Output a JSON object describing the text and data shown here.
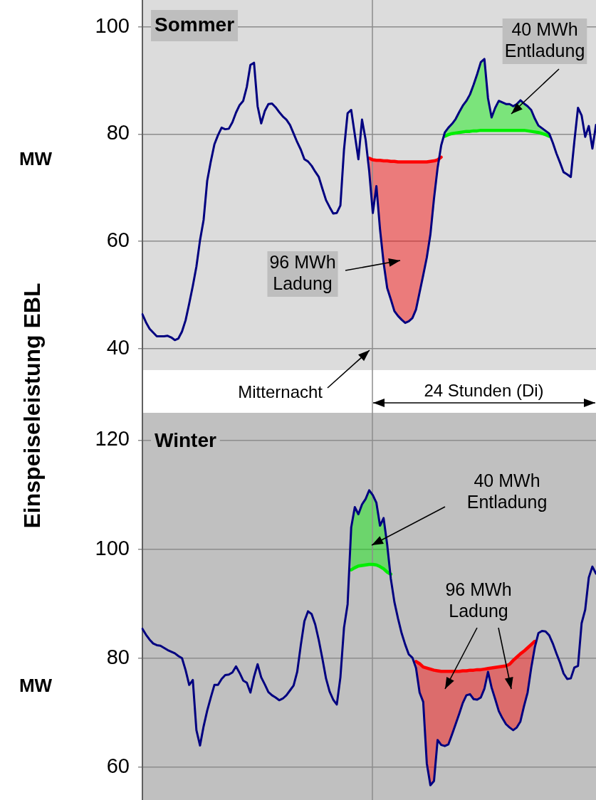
{
  "chart_data": [
    {
      "type": "line",
      "title": "Sommer",
      "ylabel": "MW",
      "ylim": [
        36,
        105
      ],
      "yticks": [
        40,
        60,
        80,
        100
      ],
      "grid": "y",
      "legend": false,
      "marker": "none",
      "tick_labels": "y",
      "categories": [
        null,
        null,
        null,
        null,
        null,
        null,
        null,
        null,
        null,
        null,
        null,
        null,
        null,
        null,
        null,
        null,
        null,
        null,
        null,
        null,
        null,
        null,
        null,
        null,
        null,
        null,
        null,
        null,
        null,
        null,
        null,
        null,
        null,
        null,
        null,
        null,
        null,
        null,
        null,
        null,
        null,
        null,
        null,
        null,
        null,
        null,
        null,
        null,
        null,
        null,
        null,
        null,
        null,
        null,
        null,
        null,
        null,
        null,
        null,
        null,
        null,
        null,
        null,
        null,
        null,
        null,
        null,
        null,
        null,
        null,
        null,
        null,
        null,
        null,
        null,
        null,
        null,
        null,
        null,
        null,
        null,
        null,
        null,
        null,
        null,
        null,
        null,
        null,
        null,
        null,
        null,
        null,
        null,
        null,
        null,
        null,
        null,
        null,
        null,
        null,
        null,
        null,
        null,
        null,
        null,
        null,
        null,
        null,
        null,
        null,
        null,
        null,
        null,
        null,
        null,
        null,
        null,
        null,
        null,
        null,
        null,
        null,
        null,
        null,
        null,
        null,
        null
      ],
      "series": [
        {
          "color": "#000080",
          "values": [
            46.4,
            44.9,
            43.7,
            43.0,
            42.3,
            42.3,
            42.3,
            42.4,
            42.1,
            41.6,
            41.9,
            43.2,
            45.3,
            48.4,
            51.7,
            55.3,
            60.2,
            64,
            71.3,
            74.9,
            78.1,
            79.8,
            81.2,
            80.9,
            81,
            82.2,
            84,
            85.4,
            86.2,
            88.8,
            92.9,
            93.3,
            85.2,
            82,
            84.3,
            85.6,
            85.7,
            85,
            84.1,
            83.3,
            82.7,
            81.7,
            80.1,
            78.5,
            77.1,
            75.3,
            74.9,
            74.1,
            73,
            72,
            69.8,
            67.7,
            66.4,
            65.2,
            65.3,
            66.7,
            77.1,
            83.9,
            84.5,
            79.9,
            75.3,
            82.7,
            79,
            73.1,
            65.3,
            70.3,
            62.3,
            56,
            51.3,
            49.2,
            47,
            46.1,
            45.4,
            44.8,
            45.1,
            45.7,
            47.3,
            50.5,
            53.7,
            57,
            61.3,
            68,
            73.7,
            77.9,
            80.3,
            81.2,
            81.9,
            82.8,
            84.1,
            85.3,
            86.2,
            87.4,
            89.2,
            91.2,
            93.4,
            94,
            86.7,
            83.1,
            84.9,
            86.2,
            85.9,
            85.6,
            85.6,
            85.2,
            85.6,
            86.3,
            85.7,
            85.2,
            84.5,
            82.9,
            81.6,
            81.1,
            80.6,
            80.1,
            78.4,
            76.4,
            74.7,
            72.9,
            72.5,
            72,
            78.7,
            84.9,
            83.5,
            79.5,
            81.5,
            77.3,
            81.7
          ]
        },
        {
          "color": "#ff0000",
          "values": [
            null,
            null,
            null,
            null,
            null,
            null,
            null,
            null,
            null,
            null,
            null,
            null,
            null,
            null,
            null,
            null,
            null,
            null,
            null,
            null,
            null,
            null,
            null,
            null,
            null,
            null,
            null,
            null,
            null,
            null,
            null,
            null,
            null,
            null,
            null,
            null,
            null,
            null,
            null,
            null,
            null,
            null,
            null,
            null,
            null,
            null,
            null,
            null,
            null,
            null,
            null,
            null,
            null,
            null,
            null,
            null,
            null,
            null,
            null,
            null,
            null,
            null,
            null,
            75.5,
            75.2,
            75.1,
            75.1,
            75,
            75,
            74.9,
            74.9,
            74.8,
            74.8,
            74.8,
            74.8,
            74.8,
            74.8,
            74.8,
            74.8,
            74.8,
            74.9,
            75,
            75.2,
            75.7,
            null,
            null,
            null,
            null,
            null,
            null,
            null,
            null,
            null,
            null,
            null,
            null,
            null,
            null,
            null,
            null,
            null,
            null,
            null,
            null,
            null,
            null,
            null,
            null,
            null,
            null,
            null,
            null,
            null,
            null,
            null,
            null,
            null,
            null,
            null,
            null,
            null,
            null,
            null,
            null,
            null,
            null,
            null
          ],
          "lower": [
            null,
            null,
            null,
            null,
            null,
            null,
            null,
            null,
            null,
            null,
            null,
            null,
            null,
            null,
            null,
            null,
            null,
            null,
            null,
            null,
            null,
            null,
            null,
            null,
            null,
            null,
            null,
            null,
            null,
            null,
            null,
            null,
            null,
            null,
            null,
            null,
            null,
            null,
            null,
            null,
            null,
            null,
            null,
            null,
            null,
            null,
            null,
            null,
            null,
            null,
            null,
            null,
            null,
            null,
            null,
            null,
            null,
            null,
            null,
            null,
            null,
            null,
            null,
            73.1,
            65.3,
            70.3,
            62.3,
            56,
            51.3,
            49.2,
            47,
            46.1,
            45.4,
            44.8,
            45.1,
            45.7,
            47.3,
            50.5,
            53.7,
            57,
            61.3,
            68,
            73.7,
            75.7,
            null,
            null,
            null,
            null,
            null,
            null,
            null,
            null,
            null,
            null,
            null,
            null,
            null,
            null,
            null,
            null,
            null,
            null,
            null,
            null,
            null,
            null,
            null,
            null,
            null,
            null,
            null,
            null,
            null,
            null,
            null,
            null,
            null,
            null,
            null,
            null,
            null,
            null,
            null,
            null,
            null,
            null,
            null
          ],
          "upper": [
            null,
            null,
            null,
            null,
            null,
            null,
            null,
            null,
            null,
            null,
            null,
            null,
            null,
            null,
            null,
            null,
            null,
            null,
            null,
            null,
            null,
            null,
            null,
            null,
            null,
            null,
            null,
            null,
            null,
            null,
            null,
            null,
            null,
            null,
            null,
            null,
            null,
            null,
            null,
            null,
            null,
            null,
            null,
            null,
            null,
            null,
            null,
            null,
            null,
            null,
            null,
            null,
            null,
            null,
            null,
            null,
            null,
            null,
            null,
            null,
            null,
            null,
            null,
            75.5,
            75.2,
            75.1,
            75.1,
            75,
            75,
            74.9,
            74.9,
            74.8,
            74.8,
            74.8,
            74.8,
            74.8,
            74.8,
            74.8,
            74.8,
            74.8,
            74.9,
            75,
            75.2,
            75.7,
            null,
            null,
            null,
            null,
            null,
            null,
            null,
            null,
            null,
            null,
            null,
            null,
            null,
            null,
            null,
            null,
            null,
            null,
            null,
            null,
            null,
            null,
            null,
            null,
            null,
            null,
            null,
            null,
            null,
            null,
            null,
            null,
            null,
            null,
            null,
            null,
            null,
            null,
            null,
            null,
            null,
            null,
            null
          ]
        },
        {
          "color": "#00ee00",
          "values": [
            null,
            null,
            null,
            null,
            null,
            null,
            null,
            null,
            null,
            null,
            null,
            null,
            null,
            null,
            null,
            null,
            null,
            null,
            null,
            null,
            null,
            null,
            null,
            null,
            null,
            null,
            null,
            null,
            null,
            null,
            null,
            null,
            null,
            null,
            null,
            null,
            null,
            null,
            null,
            null,
            null,
            null,
            null,
            null,
            null,
            null,
            null,
            null,
            null,
            null,
            null,
            null,
            null,
            null,
            null,
            null,
            null,
            null,
            null,
            null,
            null,
            null,
            null,
            null,
            null,
            null,
            null,
            null,
            null,
            null,
            null,
            null,
            null,
            null,
            null,
            null,
            null,
            null,
            null,
            null,
            null,
            null,
            null,
            null,
            79.6,
            79.9,
            80.1,
            80.2,
            80.3,
            80.4,
            80.5,
            80.5,
            80.6,
            80.6,
            80.7,
            80.7,
            80.7,
            80.7,
            80.7,
            80.7,
            80.7,
            80.7,
            80.7,
            80.7,
            80.7,
            80.7,
            80.7,
            80.6,
            80.5,
            80.4,
            80.3,
            80.1,
            79.9,
            79.6,
            null,
            null,
            null,
            null,
            null,
            null,
            null,
            null,
            null,
            null,
            null,
            null,
            null
          ],
          "lower": [
            null,
            null,
            null,
            null,
            null,
            null,
            null,
            null,
            null,
            null,
            null,
            null,
            null,
            null,
            null,
            null,
            null,
            null,
            null,
            null,
            null,
            null,
            null,
            null,
            null,
            null,
            null,
            null,
            null,
            null,
            null,
            null,
            null,
            null,
            null,
            null,
            null,
            null,
            null,
            null,
            null,
            null,
            null,
            null,
            null,
            null,
            null,
            null,
            null,
            null,
            null,
            null,
            null,
            null,
            null,
            null,
            null,
            null,
            null,
            null,
            null,
            null,
            null,
            null,
            null,
            null,
            null,
            null,
            null,
            null,
            null,
            null,
            null,
            null,
            null,
            null,
            null,
            null,
            null,
            null,
            null,
            null,
            null,
            null,
            79.6,
            79.9,
            80.1,
            80.2,
            80.3,
            80.4,
            80.5,
            80.5,
            80.6,
            80.6,
            80.7,
            80.7,
            80.7,
            80.7,
            80.7,
            80.7,
            80.7,
            80.7,
            80.7,
            80.7,
            80.7,
            80.7,
            80.7,
            80.6,
            80.5,
            80.4,
            80.3,
            80.1,
            79.9,
            79.6,
            null,
            null,
            null,
            null,
            null,
            null,
            null,
            null,
            null,
            null,
            null,
            null,
            null
          ],
          "upper": [
            null,
            null,
            null,
            null,
            null,
            null,
            null,
            null,
            null,
            null,
            null,
            null,
            null,
            null,
            null,
            null,
            null,
            null,
            null,
            null,
            null,
            null,
            null,
            null,
            null,
            null,
            null,
            null,
            null,
            null,
            null,
            null,
            null,
            null,
            null,
            null,
            null,
            null,
            null,
            null,
            null,
            null,
            null,
            null,
            null,
            null,
            null,
            null,
            null,
            null,
            null,
            null,
            null,
            null,
            null,
            null,
            null,
            null,
            null,
            null,
            null,
            null,
            null,
            null,
            null,
            null,
            null,
            null,
            null,
            null,
            null,
            null,
            null,
            null,
            null,
            null,
            null,
            null,
            null,
            null,
            null,
            null,
            null,
            null,
            80.3,
            81.2,
            81.9,
            82.8,
            84.1,
            85.3,
            86.2,
            87.4,
            89.2,
            91.2,
            93.4,
            94,
            86.7,
            83.1,
            84.9,
            86.2,
            85.9,
            85.6,
            85.6,
            85.2,
            85.6,
            86.3,
            85.7,
            85.2,
            84.5,
            82.9,
            81.6,
            81.1,
            80.6,
            80.1,
            null,
            null,
            null,
            null,
            null,
            null,
            null,
            null,
            null,
            null,
            null,
            null,
            null
          ]
        }
      ],
      "annotations": [
        "96 MWh\nLadung",
        "40 MWh\nEntladung",
        "Mitternacht",
        "24 Stunden (Di)",
        "Einspeiseleistung EBL"
      ]
    },
    {
      "type": "line",
      "title": "Winter",
      "ylabel": "MW",
      "ylim": [
        54,
        125
      ],
      "yticks": [
        60,
        80,
        100,
        120
      ],
      "grid": "y",
      "legend": false,
      "marker": "none",
      "tick_labels": "y",
      "categories": [
        null,
        null,
        null,
        null,
        null,
        null,
        null,
        null,
        null,
        null,
        null,
        null,
        null,
        null,
        null,
        null,
        null,
        null,
        null,
        null,
        null,
        null,
        null,
        null,
        null,
        null,
        null,
        null,
        null,
        null,
        null,
        null,
        null,
        null,
        null,
        null,
        null,
        null,
        null,
        null,
        null,
        null,
        null,
        null,
        null,
        null,
        null,
        null,
        null,
        null,
        null,
        null,
        null,
        null,
        null,
        null,
        null,
        null,
        null,
        null,
        null,
        null,
        null,
        null,
        null,
        null,
        null,
        null,
        null,
        null,
        null,
        null,
        null,
        null,
        null,
        null,
        null,
        null,
        null,
        null,
        null,
        null,
        null,
        null,
        null,
        null,
        null,
        null,
        null,
        null,
        null,
        null,
        null,
        null,
        null,
        null,
        null,
        null,
        null,
        null,
        null,
        null,
        null,
        null,
        null,
        null,
        null,
        null,
        null,
        null,
        null,
        null,
        null,
        null,
        null,
        null,
        null,
        null,
        null,
        null,
        null,
        null,
        null,
        null,
        null,
        null,
        null
      ],
      "series": [
        {
          "color": "#000080",
          "values": [
            85.4,
            84.3,
            83.4,
            82.7,
            82.4,
            82.3,
            81.9,
            81.5,
            81.2,
            80.9,
            80.4,
            80,
            77.8,
            75.1,
            76,
            66.8,
            64,
            67.5,
            70.4,
            72.8,
            75.1,
            75.1,
            76.2,
            76.9,
            77,
            77.4,
            78.5,
            77.3,
            75.9,
            75.5,
            73.7,
            76.6,
            78.9,
            76.5,
            75.2,
            73.8,
            73.2,
            72.8,
            72.3,
            72.6,
            73.2,
            74.1,
            75,
            77.5,
            82.4,
            86.8,
            88.6,
            88.1,
            86.2,
            83.3,
            79.9,
            76.3,
            73.9,
            72.4,
            71.5,
            76.5,
            85.6,
            89.9,
            104,
            107.7,
            106.4,
            108.2,
            109.2,
            110.8,
            109.9,
            108.5,
            104.3,
            105.7,
            100.8,
            94.6,
            90.3,
            87.3,
            84.6,
            82.5,
            80.7,
            80.1,
            78.2,
            73.7,
            72,
            60.7,
            56.7,
            57.5,
            65,
            64.1,
            63.9,
            64.2,
            66,
            67.9,
            69.8,
            71.8,
            73.2,
            73.4,
            72.5,
            72.4,
            72.8,
            74.4,
            77.5,
            74.6,
            72.5,
            70.3,
            69,
            67.9,
            67.3,
            66.8,
            67.3,
            68.4,
            71.2,
            73.7,
            78.2,
            82,
            84.6,
            85,
            84.9,
            84.2,
            82.7,
            80.9,
            79.2,
            77.2,
            76.2,
            76.3,
            78.3,
            78.6,
            86.4,
            88.9,
            94.8,
            96.8,
            95.5
          ]
        },
        {
          "color": "#00ee00",
          "values": [
            null,
            null,
            null,
            null,
            null,
            null,
            null,
            null,
            null,
            null,
            null,
            null,
            null,
            null,
            null,
            null,
            null,
            null,
            null,
            null,
            null,
            null,
            null,
            null,
            null,
            null,
            null,
            null,
            null,
            null,
            null,
            null,
            null,
            null,
            null,
            null,
            null,
            null,
            null,
            null,
            null,
            null,
            null,
            null,
            null,
            null,
            null,
            null,
            null,
            null,
            null,
            null,
            null,
            null,
            null,
            null,
            null,
            null,
            96.2,
            96.6,
            96.9,
            97,
            97.1,
            97.2,
            97.2,
            97.1,
            96.8,
            96.4,
            95.8,
            95.4,
            null,
            null,
            null,
            null,
            null,
            null,
            null,
            null,
            null,
            null,
            null,
            null,
            null,
            null,
            null,
            null,
            null,
            null,
            null,
            null,
            null,
            null,
            null,
            null,
            null,
            null,
            null,
            null,
            null,
            null,
            null,
            null,
            null,
            null,
            null,
            null,
            null,
            null,
            null,
            null,
            null,
            null,
            null,
            null,
            null,
            null,
            null,
            null,
            null,
            null,
            null,
            null,
            null,
            null,
            null,
            null,
            null
          ],
          "lower": [
            null,
            null,
            null,
            null,
            null,
            null,
            null,
            null,
            null,
            null,
            null,
            null,
            null,
            null,
            null,
            null,
            null,
            null,
            null,
            null,
            null,
            null,
            null,
            null,
            null,
            null,
            null,
            null,
            null,
            null,
            null,
            null,
            null,
            null,
            null,
            null,
            null,
            null,
            null,
            null,
            null,
            null,
            null,
            null,
            null,
            null,
            null,
            null,
            null,
            null,
            null,
            null,
            null,
            null,
            null,
            null,
            null,
            null,
            96.2,
            96.6,
            96.9,
            97,
            97.1,
            97.2,
            97.2,
            97.1,
            96.8,
            96.4,
            95.8,
            95.4,
            null,
            null,
            null,
            null,
            null,
            null,
            null,
            null,
            null,
            null,
            null,
            null,
            null,
            null,
            null,
            null,
            null,
            null,
            null,
            null,
            null,
            null,
            null,
            null,
            null,
            null,
            null,
            null,
            null,
            null,
            null,
            null,
            null,
            null,
            null,
            null,
            null,
            null,
            null,
            null,
            null,
            null,
            null,
            null,
            null,
            null,
            null,
            null,
            null,
            null,
            null,
            null,
            null,
            null,
            null,
            null,
            null
          ],
          "upper": [
            null,
            null,
            null,
            null,
            null,
            null,
            null,
            null,
            null,
            null,
            null,
            null,
            null,
            null,
            null,
            null,
            null,
            null,
            null,
            null,
            null,
            null,
            null,
            null,
            null,
            null,
            null,
            null,
            null,
            null,
            null,
            null,
            null,
            null,
            null,
            null,
            null,
            null,
            null,
            null,
            null,
            null,
            null,
            null,
            null,
            null,
            null,
            null,
            null,
            null,
            null,
            null,
            null,
            null,
            null,
            null,
            null,
            null,
            104,
            107.7,
            106.4,
            108.2,
            109.2,
            110.8,
            109.9,
            108.5,
            104.3,
            105.7,
            100.8,
            95.4,
            null,
            null,
            null,
            null,
            null,
            null,
            null,
            null,
            null,
            null,
            null,
            null,
            null,
            null,
            null,
            null,
            null,
            null,
            null,
            null,
            null,
            null,
            null,
            null,
            null,
            null,
            null,
            null,
            null,
            null,
            null,
            null,
            null,
            null,
            null,
            null,
            null,
            null,
            null,
            null,
            null,
            null,
            null,
            null,
            null,
            null,
            null,
            null,
            null,
            null,
            null,
            null,
            null,
            null,
            null,
            null,
            null
          ]
        },
        {
          "color": "#ff0000",
          "values": [
            null,
            null,
            null,
            null,
            null,
            null,
            null,
            null,
            null,
            null,
            null,
            null,
            null,
            null,
            null,
            null,
            null,
            null,
            null,
            null,
            null,
            null,
            null,
            null,
            null,
            null,
            null,
            null,
            null,
            null,
            null,
            null,
            null,
            null,
            null,
            null,
            null,
            null,
            null,
            null,
            null,
            null,
            null,
            null,
            null,
            null,
            null,
            null,
            null,
            null,
            null,
            null,
            null,
            null,
            null,
            null,
            null,
            null,
            null,
            null,
            null,
            null,
            null,
            null,
            null,
            null,
            null,
            null,
            null,
            null,
            null,
            null,
            null,
            null,
            null,
            null,
            79.4,
            79,
            78.4,
            78.2,
            78,
            77.8,
            77.7,
            77.6,
            77.6,
            77.6,
            77.6,
            77.6,
            77.6,
            77.7,
            77.7,
            77.8,
            77.8,
            77.9,
            77.9,
            78,
            78.1,
            78.2,
            78.3,
            78.4,
            78.5,
            78.6,
            78.9,
            79.6,
            80.2,
            80.8,
            81.3,
            81.9,
            82.5,
            83.1,
            null,
            null,
            null,
            null,
            null,
            null,
            null,
            null,
            null,
            null,
            null,
            null,
            null,
            null,
            null,
            null,
            null
          ],
          "lower": [
            null,
            null,
            null,
            null,
            null,
            null,
            null,
            null,
            null,
            null,
            null,
            null,
            null,
            null,
            null,
            null,
            null,
            null,
            null,
            null,
            null,
            null,
            null,
            null,
            null,
            null,
            null,
            null,
            null,
            null,
            null,
            null,
            null,
            null,
            null,
            null,
            null,
            null,
            null,
            null,
            null,
            null,
            null,
            null,
            null,
            null,
            null,
            null,
            null,
            null,
            null,
            null,
            null,
            null,
            null,
            null,
            null,
            null,
            null,
            null,
            null,
            null,
            null,
            null,
            null,
            null,
            null,
            null,
            null,
            null,
            null,
            null,
            null,
            null,
            null,
            null,
            78.2,
            73.7,
            72,
            60.7,
            56.7,
            57.5,
            65,
            64.1,
            63.9,
            64.2,
            66,
            67.9,
            69.8,
            71.8,
            73.2,
            73.4,
            72.5,
            72.4,
            72.8,
            74.4,
            77.5,
            74.6,
            72.5,
            70.3,
            69,
            67.9,
            67.3,
            66.8,
            67.3,
            68.4,
            71.2,
            73.7,
            78.2,
            82,
            null,
            null,
            null,
            null,
            null,
            null,
            null,
            null,
            null,
            null,
            null,
            null,
            null,
            null,
            null,
            null,
            null
          ],
          "upper": [
            null,
            null,
            null,
            null,
            null,
            null,
            null,
            null,
            null,
            null,
            null,
            null,
            null,
            null,
            null,
            null,
            null,
            null,
            null,
            null,
            null,
            null,
            null,
            null,
            null,
            null,
            null,
            null,
            null,
            null,
            null,
            null,
            null,
            null,
            null,
            null,
            null,
            null,
            null,
            null,
            null,
            null,
            null,
            null,
            null,
            null,
            null,
            null,
            null,
            null,
            null,
            null,
            null,
            null,
            null,
            null,
            null,
            null,
            null,
            null,
            null,
            null,
            null,
            null,
            null,
            null,
            null,
            null,
            null,
            null,
            null,
            null,
            null,
            null,
            null,
            null,
            79.4,
            79,
            78.4,
            78.2,
            78,
            77.8,
            77.7,
            77.6,
            77.6,
            77.6,
            77.6,
            77.6,
            77.6,
            77.7,
            77.7,
            77.8,
            77.8,
            77.9,
            77.9,
            78,
            78.1,
            78.2,
            78.3,
            78.4,
            78.5,
            78.6,
            78.9,
            79.6,
            80.2,
            80.8,
            81.3,
            81.9,
            82.5,
            83.1,
            null,
            null,
            null,
            null,
            null,
            null,
            null,
            null,
            null,
            null,
            null,
            null,
            null,
            null,
            null,
            null,
            null
          ]
        }
      ],
      "annotations": [
        "40 MWh\nEntladung",
        "96 MWh\nLadung"
      ]
    }
  ]
}
